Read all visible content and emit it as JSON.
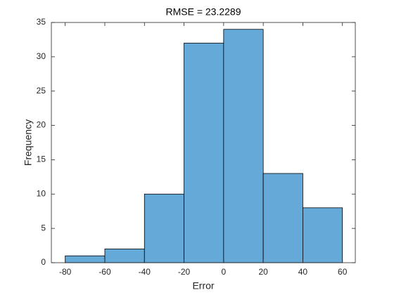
{
  "chart_data": {
    "type": "histogram",
    "title": "RMSE = 23.2289",
    "x_label": "Error",
    "y_label": "Frequency",
    "bins": [
      -80,
      -60,
      -40,
      -20,
      0,
      20,
      40,
      60
    ],
    "values": [
      1,
      2,
      10,
      32,
      34,
      13,
      8
    ],
    "color": "#65a9d8",
    "xlim": [
      -87,
      66.5
    ],
    "ylim": [
      0,
      35
    ],
    "xticks": [
      -80,
      -60,
      -40,
      -20,
      0,
      20,
      40,
      60
    ],
    "yticks": [
      0,
      5,
      10,
      15,
      20,
      25,
      30,
      35
    ]
  }
}
